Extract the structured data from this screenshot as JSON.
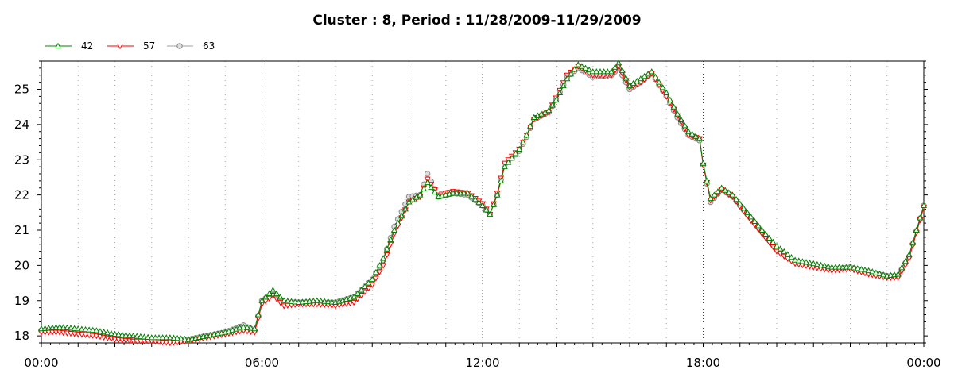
{
  "chart_data": {
    "type": "line",
    "title": "Cluster : 8, Period : 11/28/2009-11/29/2009",
    "xlabel": "",
    "ylabel": "",
    "x_range_hours": [
      0,
      24
    ],
    "ylim": [
      17.8,
      25.8
    ],
    "x_tick_labels": [
      "00:00",
      "06:00",
      "12:00",
      "18:00",
      "00:00"
    ],
    "x_tick_hours": [
      0,
      6,
      12,
      18,
      24
    ],
    "y_ticks": [
      18,
      19,
      20,
      21,
      22,
      23,
      24,
      25
    ],
    "grid": "vertical dotted",
    "legend_position": "top-left",
    "series": [
      {
        "name": "42",
        "color": "#008000",
        "marker": "triangle-up",
        "points": [
          [
            0,
            18.2
          ],
          [
            0.5,
            18.25
          ],
          [
            1,
            18.2
          ],
          [
            1.5,
            18.15
          ],
          [
            2,
            18.05
          ],
          [
            2.5,
            18.0
          ],
          [
            3,
            17.95
          ],
          [
            3.5,
            17.95
          ],
          [
            4,
            17.9
          ],
          [
            4.5,
            18.0
          ],
          [
            5,
            18.1
          ],
          [
            5.5,
            18.25
          ],
          [
            5.8,
            18.2
          ],
          [
            6,
            19.0
          ],
          [
            6.3,
            19.3
          ],
          [
            6.6,
            19.0
          ],
          [
            7,
            18.95
          ],
          [
            7.5,
            19.0
          ],
          [
            8,
            18.95
          ],
          [
            8.5,
            19.1
          ],
          [
            9,
            19.6
          ],
          [
            9.3,
            20.2
          ],
          [
            9.6,
            21.0
          ],
          [
            10,
            21.8
          ],
          [
            10.3,
            22.0
          ],
          [
            10.5,
            22.35
          ],
          [
            10.8,
            21.95
          ],
          [
            11.2,
            22.05
          ],
          [
            11.6,
            22.05
          ],
          [
            12,
            21.7
          ],
          [
            12.2,
            21.45
          ],
          [
            12.4,
            22.0
          ],
          [
            12.6,
            22.8
          ],
          [
            13,
            23.3
          ],
          [
            13.2,
            23.7
          ],
          [
            13.4,
            24.2
          ],
          [
            13.8,
            24.4
          ],
          [
            14,
            24.7
          ],
          [
            14.3,
            25.3
          ],
          [
            14.6,
            25.7
          ],
          [
            15,
            25.5
          ],
          [
            15.5,
            25.5
          ],
          [
            15.7,
            25.75
          ],
          [
            16,
            25.1
          ],
          [
            16.3,
            25.3
          ],
          [
            16.6,
            25.5
          ],
          [
            17,
            24.9
          ],
          [
            17.3,
            24.3
          ],
          [
            17.6,
            23.8
          ],
          [
            17.9,
            23.6
          ],
          [
            18,
            22.9
          ],
          [
            18.2,
            21.9
          ],
          [
            18.5,
            22.2
          ],
          [
            18.8,
            22.0
          ],
          [
            19.2,
            21.5
          ],
          [
            19.6,
            21.0
          ],
          [
            20,
            20.55
          ],
          [
            20.5,
            20.15
          ],
          [
            21,
            20.05
          ],
          [
            21.5,
            19.95
          ],
          [
            22,
            19.95
          ],
          [
            22.5,
            19.85
          ],
          [
            23,
            19.7
          ],
          [
            23.3,
            19.75
          ],
          [
            23.6,
            20.3
          ],
          [
            24,
            21.7
          ]
        ]
      },
      {
        "name": "57",
        "color": "#ff0000",
        "marker": "triangle-down",
        "points": [
          [
            0,
            18.1
          ],
          [
            0.5,
            18.1
          ],
          [
            1,
            18.05
          ],
          [
            1.5,
            18.0
          ],
          [
            2,
            17.9
          ],
          [
            2.5,
            17.85
          ],
          [
            3,
            17.85
          ],
          [
            3.5,
            17.8
          ],
          [
            4,
            17.85
          ],
          [
            4.5,
            17.95
          ],
          [
            5,
            18.05
          ],
          [
            5.5,
            18.15
          ],
          [
            5.8,
            18.1
          ],
          [
            6,
            18.9
          ],
          [
            6.3,
            19.15
          ],
          [
            6.6,
            18.85
          ],
          [
            7,
            18.9
          ],
          [
            7.5,
            18.9
          ],
          [
            8,
            18.85
          ],
          [
            8.5,
            18.95
          ],
          [
            9,
            19.45
          ],
          [
            9.3,
            20.0
          ],
          [
            9.6,
            20.9
          ],
          [
            10,
            21.8
          ],
          [
            10.3,
            21.95
          ],
          [
            10.5,
            22.45
          ],
          [
            10.8,
            22.0
          ],
          [
            11.2,
            22.1
          ],
          [
            11.6,
            22.05
          ],
          [
            12,
            21.75
          ],
          [
            12.2,
            21.45
          ],
          [
            12.4,
            22.05
          ],
          [
            12.6,
            22.9
          ],
          [
            13,
            23.3
          ],
          [
            13.2,
            23.7
          ],
          [
            13.4,
            24.15
          ],
          [
            13.8,
            24.35
          ],
          [
            14,
            24.75
          ],
          [
            14.3,
            25.4
          ],
          [
            14.6,
            25.65
          ],
          [
            15,
            25.4
          ],
          [
            15.5,
            25.4
          ],
          [
            15.7,
            25.65
          ],
          [
            16,
            25.05
          ],
          [
            16.3,
            25.2
          ],
          [
            16.6,
            25.45
          ],
          [
            17,
            24.8
          ],
          [
            17.3,
            24.25
          ],
          [
            17.6,
            23.7
          ],
          [
            17.9,
            23.6
          ],
          [
            18,
            22.85
          ],
          [
            18.2,
            21.85
          ],
          [
            18.5,
            22.15
          ],
          [
            18.8,
            21.95
          ],
          [
            19.2,
            21.4
          ],
          [
            19.6,
            20.9
          ],
          [
            20,
            20.4
          ],
          [
            20.5,
            20.05
          ],
          [
            21,
            19.95
          ],
          [
            21.5,
            19.85
          ],
          [
            22,
            19.9
          ],
          [
            22.5,
            19.75
          ],
          [
            23,
            19.65
          ],
          [
            23.3,
            19.65
          ],
          [
            23.6,
            20.2
          ],
          [
            24,
            21.65
          ]
        ]
      },
      {
        "name": "63",
        "color": "#a0a0a0",
        "marker": "circle",
        "points": [
          [
            0,
            18.15
          ],
          [
            0.5,
            18.2
          ],
          [
            1,
            18.15
          ],
          [
            1.5,
            18.1
          ],
          [
            2,
            18.0
          ],
          [
            2.5,
            17.95
          ],
          [
            3,
            17.9
          ],
          [
            3.5,
            17.9
          ],
          [
            4,
            17.9
          ],
          [
            4.5,
            18.0
          ],
          [
            5,
            18.1
          ],
          [
            5.5,
            18.3
          ],
          [
            5.8,
            18.15
          ],
          [
            6,
            19.0
          ],
          [
            6.3,
            19.2
          ],
          [
            6.6,
            18.95
          ],
          [
            7,
            18.95
          ],
          [
            7.5,
            18.95
          ],
          [
            8,
            18.95
          ],
          [
            8.5,
            19.1
          ],
          [
            9,
            19.6
          ],
          [
            9.3,
            20.15
          ],
          [
            9.6,
            21.1
          ],
          [
            10,
            21.95
          ],
          [
            10.3,
            22.0
          ],
          [
            10.5,
            22.6
          ],
          [
            10.8,
            21.95
          ],
          [
            11.2,
            22.05
          ],
          [
            11.6,
            22.0
          ],
          [
            12,
            21.7
          ],
          [
            12.2,
            21.45
          ],
          [
            12.4,
            22.0
          ],
          [
            12.6,
            22.85
          ],
          [
            13,
            23.25
          ],
          [
            13.2,
            23.65
          ],
          [
            13.4,
            24.15
          ],
          [
            13.8,
            24.35
          ],
          [
            14,
            24.7
          ],
          [
            14.3,
            25.35
          ],
          [
            14.6,
            25.6
          ],
          [
            15,
            25.35
          ],
          [
            15.5,
            25.4
          ],
          [
            15.7,
            25.6
          ],
          [
            16,
            25.0
          ],
          [
            16.3,
            25.2
          ],
          [
            16.6,
            25.45
          ],
          [
            17,
            24.8
          ],
          [
            17.3,
            24.2
          ],
          [
            17.6,
            23.7
          ],
          [
            17.9,
            23.55
          ],
          [
            18,
            22.85
          ],
          [
            18.2,
            21.8
          ],
          [
            18.5,
            22.15
          ],
          [
            18.8,
            21.95
          ],
          [
            19.2,
            21.45
          ],
          [
            19.6,
            20.95
          ],
          [
            20,
            20.45
          ],
          [
            20.5,
            20.1
          ],
          [
            21,
            20.0
          ],
          [
            21.5,
            19.9
          ],
          [
            22,
            19.95
          ],
          [
            22.5,
            19.8
          ],
          [
            23,
            19.7
          ],
          [
            23.3,
            19.7
          ],
          [
            23.6,
            20.25
          ],
          [
            24,
            21.7
          ]
        ]
      }
    ]
  }
}
